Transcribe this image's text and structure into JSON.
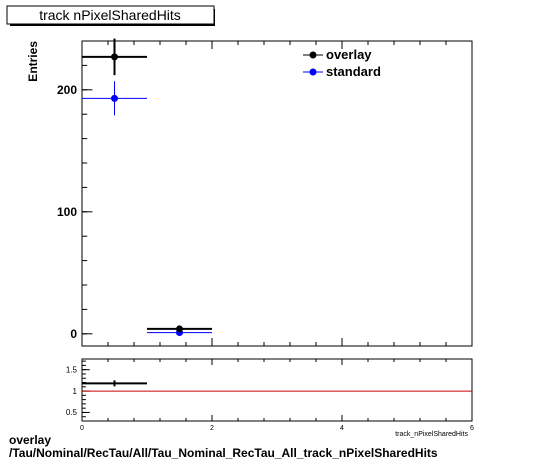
{
  "title": "track nPixelSharedHits",
  "footer": {
    "line1": "overlay",
    "line2": "/Tau/Nominal/RecTau/All/Tau_Nominal_RecTau_All_track_nPixelSharedHits"
  },
  "colors": {
    "overlay": "#000000",
    "standard": "#0000ff",
    "ratio_line": "#cc0000"
  },
  "chart_data": [
    {
      "type": "scatter",
      "title": "track nPixelSharedHits",
      "xlabel": "track_nPixelSharedHits",
      "ylabel": "Entries",
      "xlim": [
        0,
        6
      ],
      "ylim": [
        -10,
        240
      ],
      "x_ticks": [
        0,
        2,
        4,
        6
      ],
      "y_ticks": [
        0,
        100,
        200
      ],
      "legend_position": "top-right",
      "series": [
        {
          "name": "overlay",
          "color": "#000000",
          "points": [
            {
              "x": 0.5,
              "xerr": 0.5,
              "y": 227,
              "yerr": 15
            },
            {
              "x": 1.5,
              "xerr": 0.5,
              "y": 4,
              "yerr": 2
            }
          ]
        },
        {
          "name": "standard",
          "color": "#0000ff",
          "points": [
            {
              "x": 0.5,
              "xerr": 0.5,
              "y": 193,
              "yerr": 14
            },
            {
              "x": 1.5,
              "xerr": 0.5,
              "y": 1,
              "yerr": 1
            }
          ]
        }
      ]
    },
    {
      "type": "scatter",
      "title": "",
      "xlabel": "",
      "ylabel": "",
      "xlim": [
        0,
        6
      ],
      "ylim": [
        0.3,
        1.75
      ],
      "x_ticks": [
        0,
        2,
        4,
        6
      ],
      "y_ticks": [
        0.5,
        1,
        1.5
      ],
      "reference_line": 1,
      "series": [
        {
          "name": "",
          "color": "#000000",
          "points": [
            {
              "x": 0.5,
              "xerr": 0.5,
              "y": 1.18,
              "yerr": 0.07
            }
          ]
        }
      ]
    }
  ]
}
